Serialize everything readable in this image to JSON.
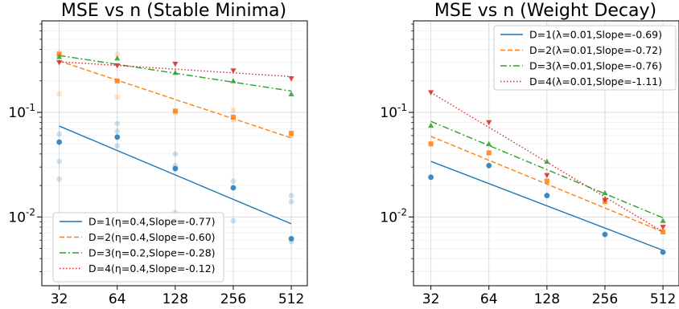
{
  "chart_data": [
    {
      "type": "scatter",
      "title": "MSE vs n (Stable Minima)",
      "xlabel": "",
      "ylabel": "",
      "x_scale": "log2",
      "y_scale": "log10",
      "x_ticks": [
        32,
        64,
        128,
        256,
        512
      ],
      "x_tick_labels": [
        "32",
        "64",
        "128",
        "256",
        "512"
      ],
      "y_ticks": [
        0.01,
        0.1
      ],
      "y_tick_labels": [
        "10^-2",
        "10^-1"
      ],
      "xlim": [
        26,
        620
      ],
      "ylim": [
        0.0022,
        0.75
      ],
      "grid": true,
      "legend_position": "lower-left",
      "series": [
        {
          "name": "D=1(η=0.4,Slope=-0.77)",
          "color": "#1f77b4",
          "linestyle": "solid",
          "marker": "circle",
          "fit": [
            [
              32,
              0.074
            ],
            [
              512,
              0.0086
            ]
          ],
          "x": [
            32,
            64,
            128,
            256,
            512
          ],
          "y": [
            0.052,
            0.058,
            0.029,
            0.019,
            0.0062
          ],
          "trials": [
            [
              32,
              0.023
            ],
            [
              32,
              0.034
            ],
            [
              32,
              0.062
            ],
            [
              64,
              0.048
            ],
            [
              64,
              0.066
            ],
            [
              64,
              0.078
            ],
            [
              128,
              0.011
            ],
            [
              128,
              0.031
            ],
            [
              128,
              0.04
            ],
            [
              256,
              0.0092
            ],
            [
              256,
              0.022
            ],
            [
              512,
              0.0058
            ],
            [
              512,
              0.014
            ],
            [
              512,
              0.016
            ]
          ]
        },
        {
          "name": "D=2(η=0.4,Slope=-0.60)",
          "color": "#ff7f0e",
          "linestyle": "dashed",
          "marker": "square",
          "fit": [
            [
              32,
              0.31
            ],
            [
              512,
              0.057
            ]
          ],
          "x": [
            32,
            64,
            128,
            256,
            512
          ],
          "y": [
            0.36,
            0.2,
            0.103,
            0.09,
            0.063
          ],
          "trials": [
            [
              32,
              0.15
            ],
            [
              32,
              0.37
            ],
            [
              64,
              0.14
            ],
            [
              64,
              0.36
            ],
            [
              128,
              0.1
            ],
            [
              256,
              0.085
            ],
            [
              256,
              0.105
            ],
            [
              512,
              0.06
            ]
          ]
        },
        {
          "name": "D=3(η=0.2,Slope=-0.28)",
          "color": "#2ca02c",
          "linestyle": "dashdot",
          "marker": "triangle-up",
          "fit": [
            [
              32,
              0.35
            ],
            [
              512,
              0.16
            ]
          ],
          "x": [
            32,
            64,
            128,
            256,
            512
          ],
          "y": [
            0.34,
            0.33,
            0.24,
            0.2,
            0.15
          ],
          "trials": []
        },
        {
          "name": "D=4(η=0.4,Slope=-0.12)",
          "color": "#d62728",
          "linestyle": "dotted",
          "marker": "triangle-down",
          "fit": [
            [
              32,
              0.305
            ],
            [
              512,
              0.22
            ]
          ],
          "x": [
            32,
            64,
            128,
            256,
            512
          ],
          "y": [
            0.3,
            0.28,
            0.29,
            0.25,
            0.21
          ],
          "trials": []
        }
      ]
    },
    {
      "type": "scatter",
      "title": "MSE vs n (Weight Decay)",
      "xlabel": "",
      "ylabel": "",
      "x_scale": "log2",
      "y_scale": "log10",
      "x_ticks": [
        32,
        64,
        128,
        256,
        512
      ],
      "x_tick_labels": [
        "32",
        "64",
        "128",
        "256",
        "512"
      ],
      "y_ticks": [
        0.01,
        0.1
      ],
      "y_tick_labels": [
        "10^-2",
        "10^-1"
      ],
      "xlim": [
        26,
        620
      ],
      "ylim": [
        0.0022,
        0.75
      ],
      "grid": true,
      "legend_position": "top-right",
      "series": [
        {
          "name": "D=1(λ=0.01,Slope=-0.69)",
          "color": "#1f77b4",
          "linestyle": "solid",
          "marker": "circle",
          "fit": [
            [
              32,
              0.034
            ],
            [
              512,
              0.0048
            ]
          ],
          "x": [
            32,
            64,
            128,
            256,
            512
          ],
          "y": [
            0.024,
            0.031,
            0.016,
            0.0068,
            0.0046
          ],
          "trials": []
        },
        {
          "name": "D=2(λ=0.01,Slope=-0.72)",
          "color": "#ff7f0e",
          "linestyle": "dashed",
          "marker": "square",
          "fit": [
            [
              32,
              0.059
            ],
            [
              512,
              0.0072
            ]
          ],
          "x": [
            32,
            64,
            128,
            256,
            512
          ],
          "y": [
            0.05,
            0.041,
            0.022,
            0.014,
            0.0072
          ],
          "trials": []
        },
        {
          "name": "D=3(λ=0.01,Slope=-0.76)",
          "color": "#2ca02c",
          "linestyle": "dashdot",
          "marker": "triangle-up",
          "fit": [
            [
              32,
              0.082
            ],
            [
              512,
              0.0098
            ]
          ],
          "x": [
            32,
            64,
            128,
            256,
            512
          ],
          "y": [
            0.075,
            0.05,
            0.034,
            0.017,
            0.0092
          ],
          "trials": []
        },
        {
          "name": "D=4(λ=0.01,Slope=-1.11)",
          "color": "#d62728",
          "linestyle": "dotted",
          "marker": "triangle-down",
          "fit": [
            [
              32,
              0.155
            ],
            [
              512,
              0.0072
            ]
          ],
          "x": [
            32,
            64,
            128,
            256,
            512
          ],
          "y": [
            0.155,
            0.08,
            0.025,
            0.0145,
            0.008
          ],
          "trials": []
        }
      ]
    }
  ]
}
